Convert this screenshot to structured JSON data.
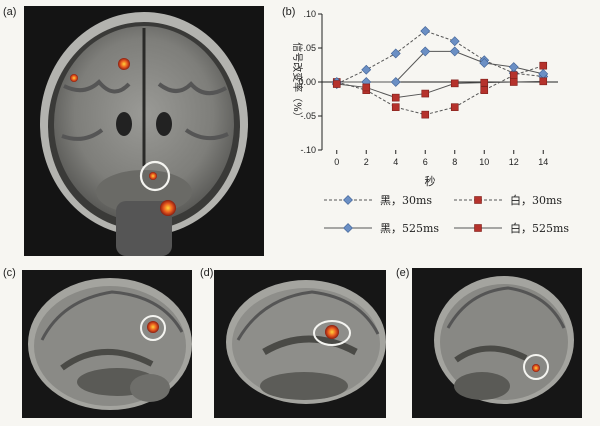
{
  "panels": {
    "a": "(a)",
    "b": "(b)",
    "c": "(c)",
    "d": "(d)",
    "e": "(e)"
  },
  "chart_data": {
    "type": "line",
    "ylabel": "信号改变率（%）",
    "xlabel": "秒",
    "x": [
      0,
      2,
      4,
      6,
      8,
      10,
      12,
      14
    ],
    "xticks": [
      "0",
      "2",
      "4",
      "6",
      "8",
      "10",
      "12",
      "14"
    ],
    "yticks": [
      ".10",
      ".05",
      "0.00",
      "-.05",
      "-.10"
    ],
    "ylim": [
      -0.1,
      0.1
    ],
    "xlim": [
      -1,
      15
    ],
    "series": [
      {
        "name": "黑，30ms",
        "marker": "diamond",
        "dash": true,
        "color": "#6b8fc4",
        "values": [
          -0.003,
          0.018,
          0.042,
          0.075,
          0.06,
          0.032,
          0.013,
          0.008
        ]
      },
      {
        "name": "白，30ms",
        "marker": "square",
        "dash": true,
        "color": "#b5322c",
        "values": [
          0.0,
          -0.012,
          -0.037,
          -0.048,
          -0.037,
          -0.012,
          0.01,
          0.024
        ]
      },
      {
        "name": "黑，525ms",
        "marker": "diamond",
        "dash": false,
        "color": "#6b8fc4",
        "values": [
          0.0,
          0.0,
          0.0,
          0.045,
          0.045,
          0.028,
          0.022,
          0.012
        ]
      },
      {
        "name": "白，525ms",
        "marker": "square",
        "dash": false,
        "color": "#b5322c",
        "values": [
          -0.003,
          -0.008,
          -0.023,
          -0.017,
          -0.002,
          -0.001,
          0.0,
          0.001
        ]
      }
    ]
  }
}
